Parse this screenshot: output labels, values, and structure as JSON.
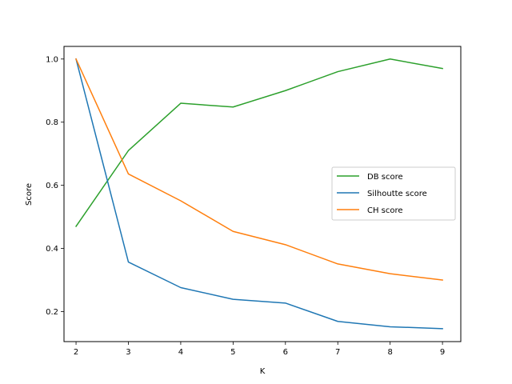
{
  "chart_data": {
    "type": "line",
    "title": "",
    "xlabel": "K",
    "ylabel": "Score",
    "x": [
      2,
      3,
      4,
      5,
      6,
      7,
      8,
      9
    ],
    "xlim": [
      1.77,
      9.35
    ],
    "ylim": [
      0.105,
      1.04
    ],
    "xticks": [
      "2",
      "3",
      "4",
      "5",
      "6",
      "7",
      "8",
      "9"
    ],
    "yticks": [
      "0.2",
      "0.4",
      "0.6",
      "0.8",
      "1.0"
    ],
    "ytick_values": [
      0.2,
      0.4,
      0.6,
      0.8,
      1.0
    ],
    "grid": false,
    "legend_position": "center-right",
    "series": [
      {
        "name": "DB score",
        "color": "#2ca02c",
        "values": [
          0.47,
          0.71,
          0.86,
          0.848,
          0.9,
          0.96,
          1.0,
          0.97
        ]
      },
      {
        "name": "Silhoutte score",
        "color": "#1f77b4",
        "values": [
          1.0,
          0.357,
          0.276,
          0.239,
          0.227,
          0.169,
          0.152,
          0.146
        ]
      },
      {
        "name": "CH score",
        "color": "#ff7f0e",
        "values": [
          1.0,
          0.636,
          0.551,
          0.454,
          0.412,
          0.351,
          0.32,
          0.3
        ]
      }
    ]
  }
}
